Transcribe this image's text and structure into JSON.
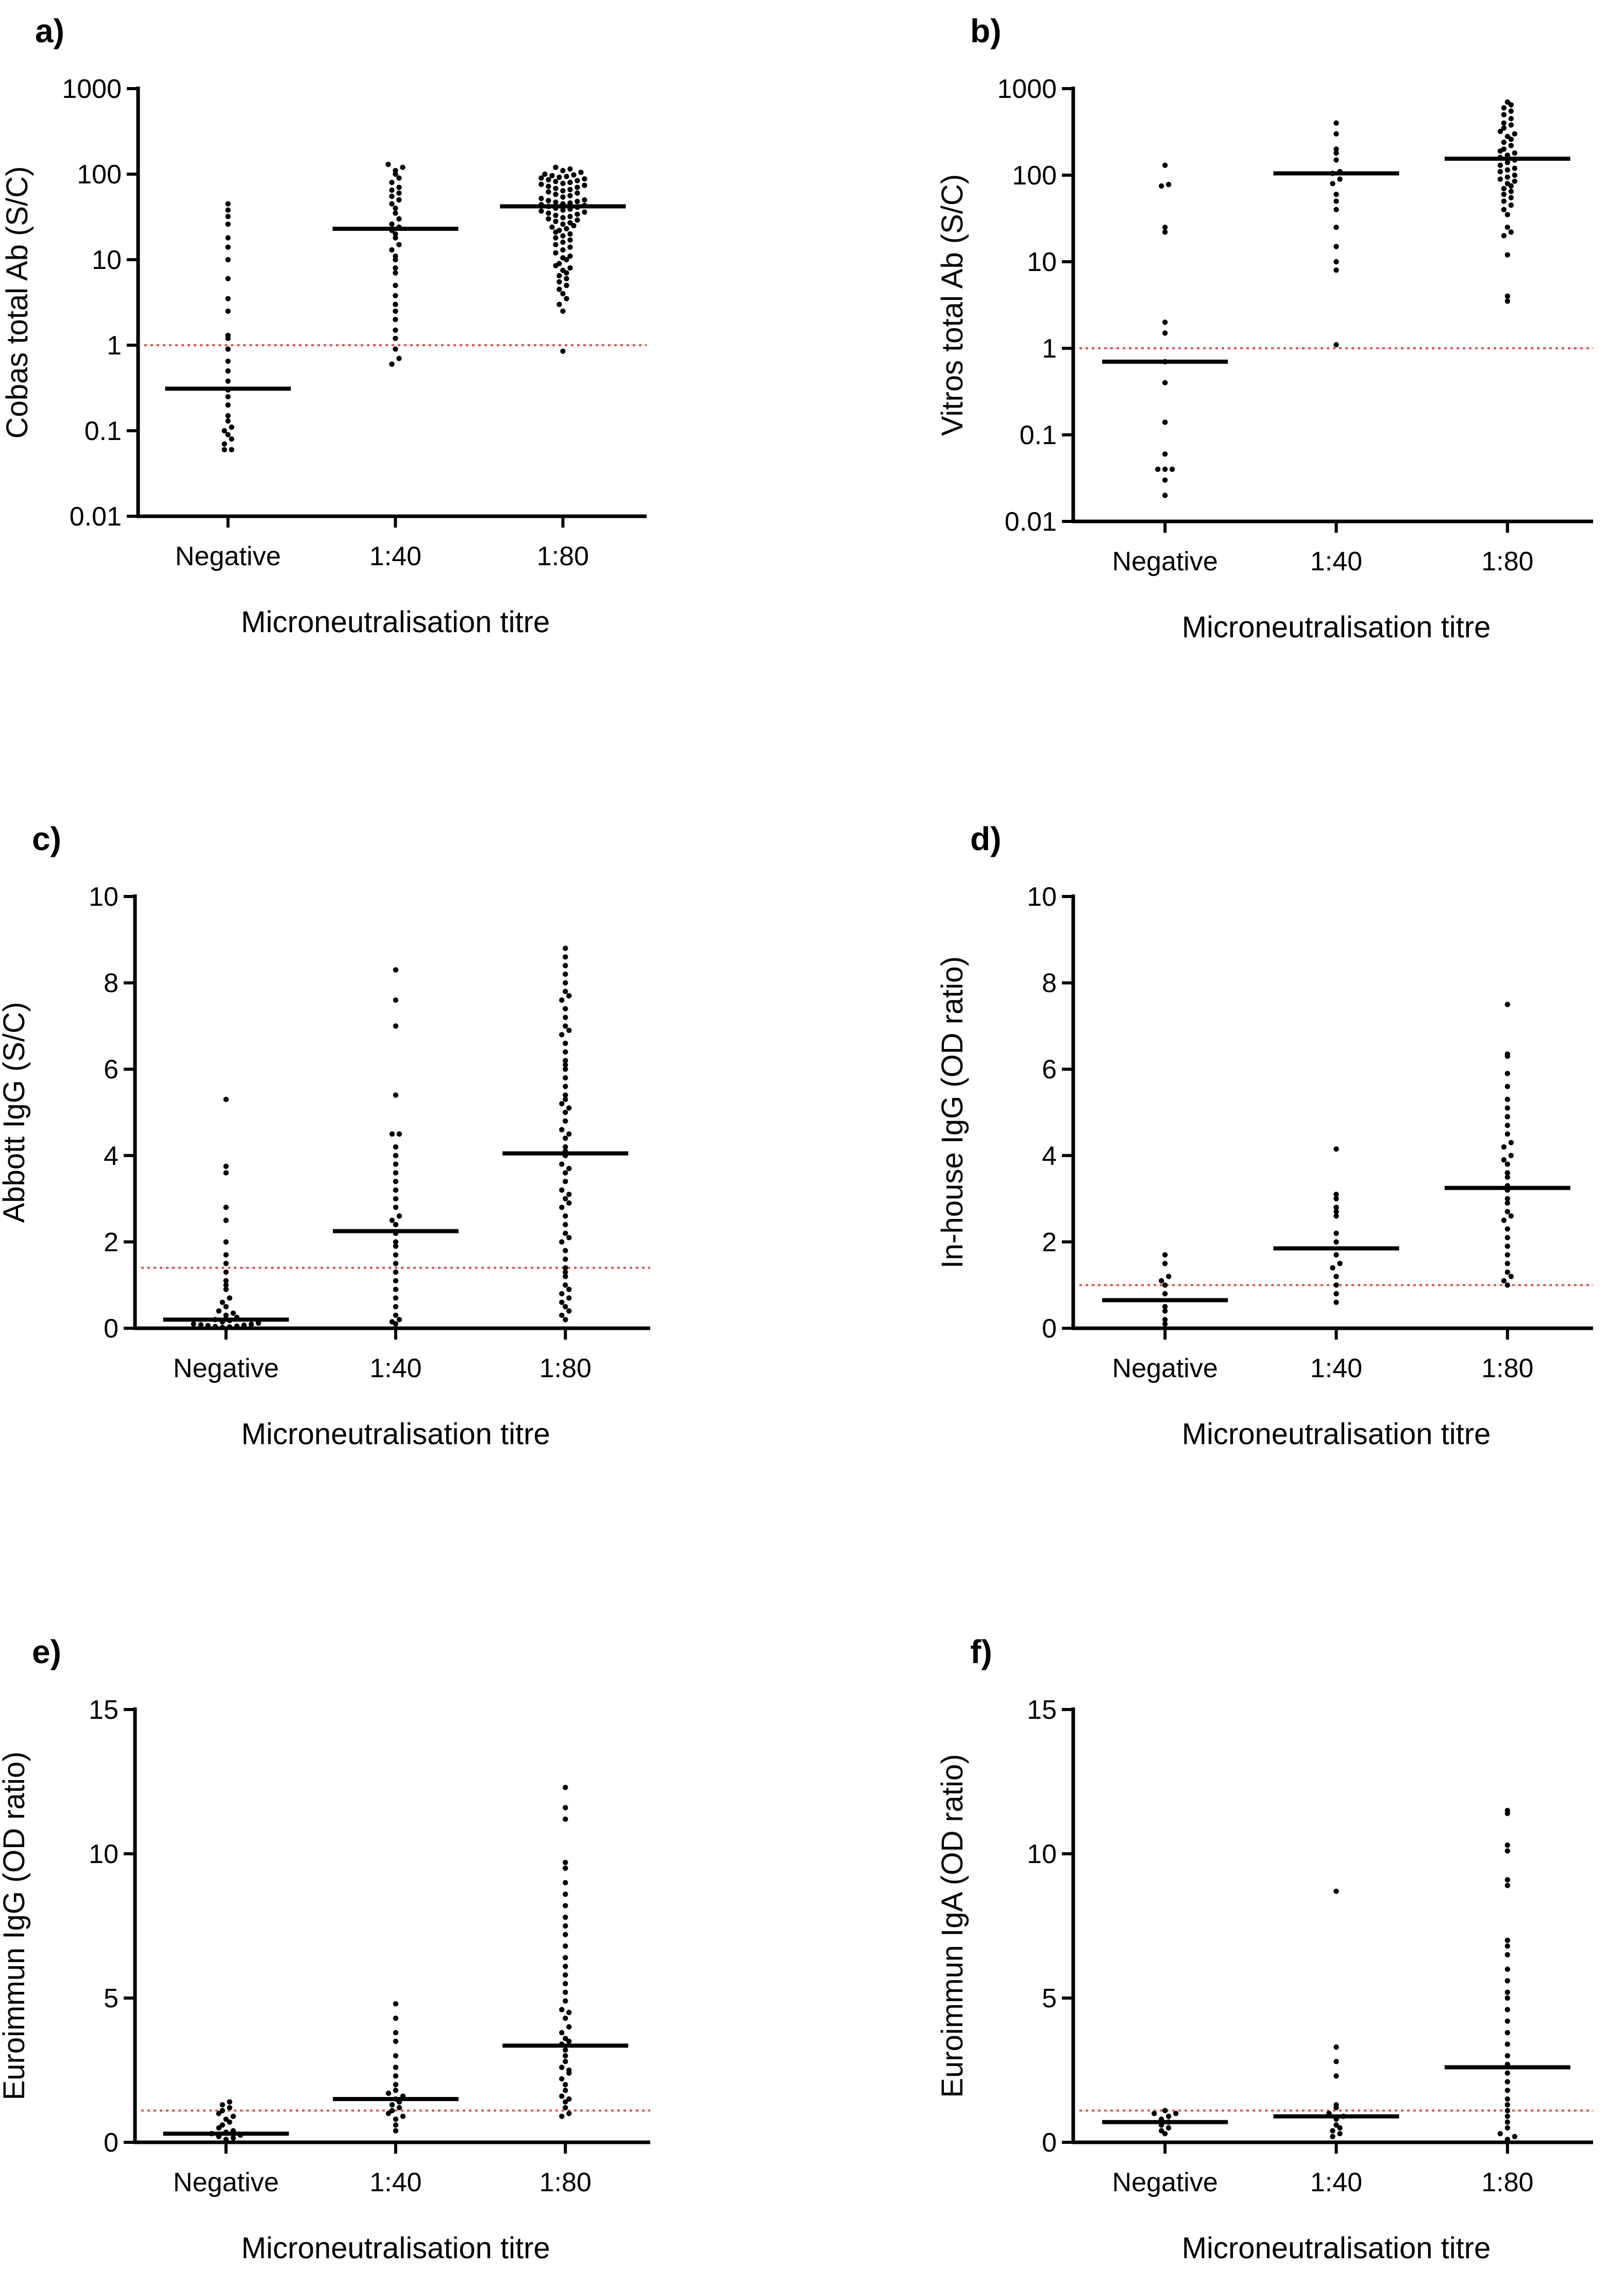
{
  "chart_data": [
    {
      "type": "scatter",
      "panel": "a)",
      "ylabel": "Cobas total Ab (S/C)",
      "xlabel": "Microneutralisation titre",
      "categories": [
        "Negative",
        "1:40",
        "1:80"
      ],
      "yscale": "log",
      "ylim": [
        0.01,
        1000
      ],
      "yticks": [
        0.01,
        0.1,
        1,
        10,
        100,
        1000
      ],
      "yticklabels": [
        "0.01",
        "0.1",
        "1",
        "10",
        "100",
        "1000"
      ],
      "cutoff": 1,
      "medians": [
        0.31,
        23,
        42
      ],
      "series": [
        {
          "name": "Negative",
          "values": [
            0.06,
            0.06,
            0.07,
            0.08,
            0.09,
            0.1,
            0.11,
            0.13,
            0.15,
            0.2,
            0.25,
            0.3,
            0.38,
            0.5,
            0.65,
            0.9,
            1.2,
            1.3,
            2.5,
            3.5,
            6,
            10,
            14,
            18,
            26,
            32,
            38,
            45
          ]
        },
        {
          "name": "1:40",
          "values": [
            0.6,
            0.7,
            0.9,
            1.2,
            1.5,
            2,
            2.5,
            3,
            3.8,
            5,
            7,
            8,
            10,
            11,
            13,
            15,
            18,
            20,
            22,
            24,
            26,
            30,
            35,
            40,
            45,
            50,
            55,
            60,
            65,
            70,
            80,
            90,
            100,
            110,
            120,
            130
          ]
        },
        {
          "name": "1:80",
          "values": [
            0.85,
            2.5,
            3,
            3.5,
            4,
            4.5,
            5,
            5.5,
            6,
            6.5,
            7,
            7.5,
            8,
            8.5,
            9,
            10,
            10.5,
            11,
            12,
            13,
            14,
            15,
            16,
            17,
            18,
            19,
            20,
            21,
            22,
            23,
            24,
            25,
            26,
            27,
            28,
            29,
            30,
            31,
            32,
            33,
            34,
            35,
            36,
            37,
            38,
            39,
            40,
            41,
            42,
            43,
            44,
            45,
            46,
            47,
            48,
            49,
            50,
            52,
            54,
            56,
            58,
            60,
            62,
            64,
            66,
            68,
            70,
            72,
            74,
            76,
            78,
            80,
            82,
            84,
            86,
            88,
            90,
            92,
            94,
            96,
            98,
            100,
            105,
            110,
            115,
            120
          ]
        }
      ]
    },
    {
      "type": "scatter",
      "panel": "b)",
      "ylabel": "Vitros total Ab (S/C)",
      "xlabel": "Microneutralisation titre",
      "categories": [
        "Negative",
        "1:40",
        "1:80"
      ],
      "yscale": "log",
      "ylim": [
        0.01,
        1000
      ],
      "yticks": [
        0.01,
        0.1,
        1,
        10,
        100,
        1000
      ],
      "yticklabels": [
        "0.01",
        "0.1",
        "1",
        "10",
        "100",
        "1000"
      ],
      "cutoff": 1,
      "medians": [
        0.7,
        105,
        155
      ],
      "series": [
        {
          "name": "Negative",
          "values": [
            0.02,
            0.03,
            0.04,
            0.04,
            0.04,
            0.06,
            0.14,
            0.4,
            0.7,
            1.5,
            2,
            22,
            25,
            75,
            78,
            130
          ]
        },
        {
          "name": "1:40",
          "values": [
            1.1,
            8,
            10,
            15,
            25,
            40,
            50,
            60,
            80,
            90,
            105,
            110,
            150,
            180,
            200,
            300,
            400
          ]
        },
        {
          "name": "1:80",
          "values": [
            3.5,
            4,
            12,
            20,
            22,
            25,
            35,
            40,
            45,
            50,
            55,
            60,
            65,
            70,
            75,
            80,
            85,
            90,
            95,
            100,
            110,
            115,
            120,
            130,
            140,
            150,
            160,
            170,
            180,
            190,
            200,
            220,
            240,
            260,
            280,
            300,
            320,
            350,
            380,
            400,
            450,
            500,
            550,
            600,
            650,
            700
          ]
        }
      ]
    },
    {
      "type": "scatter",
      "panel": "c)",
      "ylabel": "Abbott IgG (S/C)",
      "xlabel": "Microneutralisation titre",
      "categories": [
        "Negative",
        "1:40",
        "1:80"
      ],
      "yscale": "linear",
      "ylim": [
        0,
        10
      ],
      "yticks": [
        0,
        2,
        4,
        6,
        8,
        10
      ],
      "yticklabels": [
        "0",
        "2",
        "4",
        "6",
        "8",
        "10"
      ],
      "cutoff": 1.4,
      "medians": [
        0.2,
        2.25,
        4.05
      ],
      "series": [
        {
          "name": "Negative",
          "values": [
            0.02,
            0.03,
            0.04,
            0.05,
            0.06,
            0.07,
            0.08,
            0.09,
            0.1,
            0.12,
            0.15,
            0.18,
            0.2,
            0.25,
            0.3,
            0.35,
            0.4,
            0.5,
            0.6,
            0.7,
            0.9,
            1.0,
            1.1,
            1.3,
            1.5,
            1.7,
            2.0,
            2.5,
            2.8,
            3.6,
            3.75,
            5.3
          ]
        },
        {
          "name": "1:40",
          "values": [
            0.1,
            0.15,
            0.2,
            0.3,
            0.5,
            0.7,
            0.9,
            1.1,
            1.3,
            1.5,
            1.7,
            1.9,
            2.0,
            2.2,
            2.4,
            2.5,
            2.6,
            2.8,
            3.0,
            3.2,
            3.4,
            3.6,
            3.8,
            4.0,
            4.2,
            4.5,
            4.5,
            5.4,
            7.0,
            7.6,
            8.3
          ]
        },
        {
          "name": "1:80",
          "values": [
            0.2,
            0.3,
            0.4,
            0.5,
            0.6,
            0.7,
            0.8,
            0.9,
            1.0,
            1.2,
            1.4,
            1.6,
            1.8,
            2.0,
            2.2,
            2.4,
            2.6,
            2.8,
            3.0,
            3.2,
            3.4,
            3.6,
            3.8,
            4.0,
            4.2,
            4.4,
            4.6,
            4.8,
            5.0,
            5.2,
            5.4,
            5.6,
            5.8,
            6.0,
            6.2,
            6.4,
            6.6,
            6.8,
            7.0,
            7.2,
            7.4,
            7.6,
            7.8,
            8.0,
            8.2,
            8.4,
            8.6,
            8.8,
            1.3,
            2.1,
            2.9,
            3.7,
            4.5,
            5.3,
            6.1,
            6.9,
            7.7,
            3.1,
            4.1,
            5.1
          ]
        }
      ]
    },
    {
      "type": "scatter",
      "panel": "d)",
      "ylabel": "In-house IgG (OD ratio)",
      "xlabel": "Microneutralisation titre",
      "categories": [
        "Negative",
        "1:40",
        "1:80"
      ],
      "yscale": "linear",
      "ylim": [
        0,
        10
      ],
      "yticks": [
        0,
        2,
        4,
        6,
        8,
        10
      ],
      "yticklabels": [
        "0",
        "2",
        "4",
        "6",
        "8",
        "10"
      ],
      "cutoff": 1,
      "medians": [
        0.65,
        1.85,
        3.25
      ],
      "series": [
        {
          "name": "Negative",
          "values": [
            0.1,
            0.2,
            0.4,
            0.5,
            0.8,
            1.0,
            1.1,
            1.2,
            1.5,
            1.7
          ]
        },
        {
          "name": "1:40",
          "values": [
            0.6,
            0.8,
            1.0,
            1.2,
            1.4,
            1.5,
            1.7,
            2.0,
            2.2,
            2.6,
            2.7,
            2.8,
            3.0,
            3.1,
            4.15
          ]
        },
        {
          "name": "1:80",
          "values": [
            1.0,
            1.1,
            1.2,
            1.3,
            1.5,
            1.7,
            1.9,
            2.1,
            2.3,
            2.5,
            2.6,
            2.7,
            2.9,
            3.0,
            3.2,
            3.3,
            3.5,
            3.6,
            3.8,
            3.9,
            4.0,
            4.2,
            4.3,
            4.5,
            4.7,
            4.9,
            5.1,
            5.3,
            5.6,
            5.9,
            6.3,
            6.35,
            7.5
          ]
        }
      ]
    },
    {
      "type": "scatter",
      "panel": "e)",
      "ylabel": "Euroimmun IgG (OD ratio)",
      "xlabel": "Microneutralisation titre",
      "categories": [
        "Negative",
        "1:40",
        "1:80"
      ],
      "yscale": "linear",
      "ylim": [
        0,
        15
      ],
      "yticks": [
        0,
        5,
        10,
        15
      ],
      "yticklabels": [
        "0",
        "5",
        "10",
        "15"
      ],
      "cutoff": 1.1,
      "medians": [
        0.3,
        1.5,
        3.35
      ],
      "series": [
        {
          "name": "Negative",
          "values": [
            0.05,
            0.1,
            0.15,
            0.2,
            0.25,
            0.3,
            0.35,
            0.4,
            0.5,
            0.6,
            0.7,
            0.8,
            0.9,
            1.0,
            1.1,
            1.2,
            1.3,
            1.4
          ]
        },
        {
          "name": "1:40",
          "values": [
            0.4,
            0.6,
            0.8,
            0.9,
            1.0,
            1.1,
            1.2,
            1.3,
            1.4,
            1.5,
            1.6,
            1.7,
            1.8,
            2.0,
            2.3,
            2.6,
            3.0,
            3.5,
            3.8,
            4.3,
            4.8
          ]
        },
        {
          "name": "1:80",
          "values": [
            0.9,
            1.0,
            1.2,
            1.4,
            1.6,
            1.8,
            2.0,
            2.2,
            2.4,
            2.6,
            2.8,
            3.0,
            3.2,
            3.4,
            3.6,
            3.8,
            4.0,
            4.3,
            4.6,
            4.9,
            5.2,
            5.5,
            5.8,
            6.1,
            6.4,
            6.8,
            7.2,
            7.5,
            7.8,
            8.2,
            8.6,
            9.0,
            9.5,
            9.7,
            11.2,
            11.6,
            12.3,
            1.5,
            2.5,
            3.5,
            4.5
          ]
        }
      ]
    },
    {
      "type": "scatter",
      "panel": "f)",
      "ylabel": "Euroimmun IgA (OD ratio)",
      "xlabel": "Microneutralisation titre",
      "categories": [
        "Negative",
        "1:40",
        "1:80"
      ],
      "yscale": "linear",
      "ylim": [
        0,
        15
      ],
      "yticks": [
        0,
        5,
        10,
        15
      ],
      "yticklabels": [
        "0",
        "5",
        "10",
        "15"
      ],
      "cutoff": 1.1,
      "medians": [
        0.7,
        0.9,
        2.6
      ],
      "series": [
        {
          "name": "Negative",
          "values": [
            0.3,
            0.4,
            0.5,
            0.6,
            0.7,
            0.8,
            0.9,
            1.0,
            1.0,
            1.1
          ]
        },
        {
          "name": "1:40",
          "values": [
            0.2,
            0.3,
            0.4,
            0.5,
            0.6,
            0.8,
            0.9,
            1.0,
            1.2,
            1.3,
            2.3,
            2.8,
            3.3,
            8.7
          ]
        },
        {
          "name": "1:80",
          "values": [
            0.1,
            0.2,
            0.3,
            0.5,
            0.7,
            0.9,
            1.1,
            1.3,
            1.5,
            1.8,
            2.1,
            2.4,
            2.7,
            3.0,
            3.4,
            3.8,
            4.2,
            4.6,
            5.0,
            5.2,
            5.6,
            6.0,
            6.5,
            6.8,
            7.0,
            8.9,
            9.1,
            10.1,
            10.3,
            11.4,
            11.5
          ]
        }
      ]
    }
  ]
}
